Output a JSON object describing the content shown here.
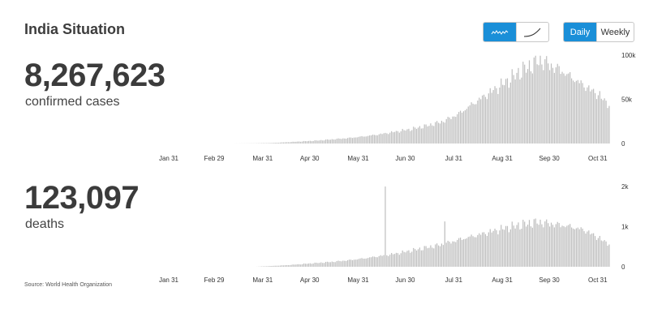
{
  "title": "India Situation",
  "toggles": {
    "chart_type": [
      {
        "icon": "bar-wave-icon",
        "active": true
      },
      {
        "icon": "cumulative-curve-icon",
        "active": false
      }
    ],
    "period": [
      {
        "label": "Daily",
        "active": true
      },
      {
        "label": "Weekly",
        "active": false
      }
    ]
  },
  "cases": {
    "value": "8,267,623",
    "label": "confirmed cases"
  },
  "deaths": {
    "value": "123,097",
    "label": "deaths"
  },
  "source": "Source: World Health Organization",
  "colors": {
    "bar": "#bdbdbd",
    "accent": "#1a8fd8",
    "text": "#333333"
  },
  "chart_data": [
    {
      "type": "bar",
      "title": "",
      "xlabel": "",
      "ylabel": "",
      "x_ticks": [
        "Jan 31",
        "Feb 29",
        "Mar 31",
        "Apr 30",
        "May 31",
        "Jun 30",
        "Jul 31",
        "Aug 31",
        "Sep 30",
        "Oct 31"
      ],
      "x_tick_day_index": [
        0,
        29,
        60,
        90,
        121,
        151,
        182,
        213,
        243,
        274
      ],
      "x_range_days": [
        0,
        281
      ],
      "y_ticks": [
        "0",
        "50k",
        "100k"
      ],
      "y_tick_values": [
        0,
        50000,
        100000
      ],
      "ylim": [
        0,
        100000
      ],
      "grid": false,
      "points": [
        [
          0,
          0
        ],
        [
          40,
          0
        ],
        [
          55,
          200
        ],
        [
          65,
          600
        ],
        [
          75,
          1500
        ],
        [
          85,
          2500
        ],
        [
          95,
          3500
        ],
        [
          105,
          5000
        ],
        [
          115,
          6500
        ],
        [
          125,
          8500
        ],
        [
          135,
          11000
        ],
        [
          145,
          14000
        ],
        [
          155,
          17000
        ],
        [
          165,
          21000
        ],
        [
          175,
          26000
        ],
        [
          185,
          35000
        ],
        [
          195,
          48000
        ],
        [
          205,
          60000
        ],
        [
          215,
          72000
        ],
        [
          225,
          85000
        ],
        [
          232,
          92000
        ],
        [
          236,
          97000
        ],
        [
          240,
          95000
        ],
        [
          245,
          90000
        ],
        [
          250,
          86000
        ],
        [
          255,
          80000
        ],
        [
          260,
          74000
        ],
        [
          265,
          68000
        ],
        [
          270,
          62000
        ],
        [
          275,
          56000
        ],
        [
          278,
          50000
        ],
        [
          281,
          46000
        ]
      ]
    },
    {
      "type": "bar",
      "title": "",
      "xlabel": "",
      "ylabel": "",
      "x_ticks": [
        "Jan 31",
        "Feb 29",
        "Mar 31",
        "Apr 30",
        "May 31",
        "Jun 30",
        "Jul 31",
        "Aug 31",
        "Sep 30",
        "Oct 31"
      ],
      "x_tick_day_index": [
        0,
        29,
        60,
        90,
        121,
        151,
        182,
        213,
        243,
        274
      ],
      "x_range_days": [
        0,
        281
      ],
      "y_ticks": [
        "0",
        "1k",
        "2k"
      ],
      "y_tick_values": [
        0,
        1000,
        2000
      ],
      "ylim": [
        0,
        2000
      ],
      "grid": false,
      "points": [
        [
          0,
          0
        ],
        [
          55,
          0
        ],
        [
          65,
          20
        ],
        [
          75,
          40
        ],
        [
          85,
          70
        ],
        [
          95,
          100
        ],
        [
          105,
          130
        ],
        [
          115,
          170
        ],
        [
          125,
          220
        ],
        [
          135,
          280
        ],
        [
          145,
          340
        ],
        [
          155,
          420
        ],
        [
          165,
          500
        ],
        [
          175,
          580
        ],
        [
          185,
          700
        ],
        [
          195,
          800
        ],
        [
          205,
          900
        ],
        [
          215,
          1000
        ],
        [
          225,
          1080
        ],
        [
          235,
          1150
        ],
        [
          245,
          1100
        ],
        [
          255,
          1050
        ],
        [
          265,
          950
        ],
        [
          272,
          800
        ],
        [
          278,
          650
        ],
        [
          281,
          600
        ]
      ],
      "spikes": [
        [
          138,
          2000
        ],
        [
          176,
          1130
        ]
      ]
    }
  ]
}
